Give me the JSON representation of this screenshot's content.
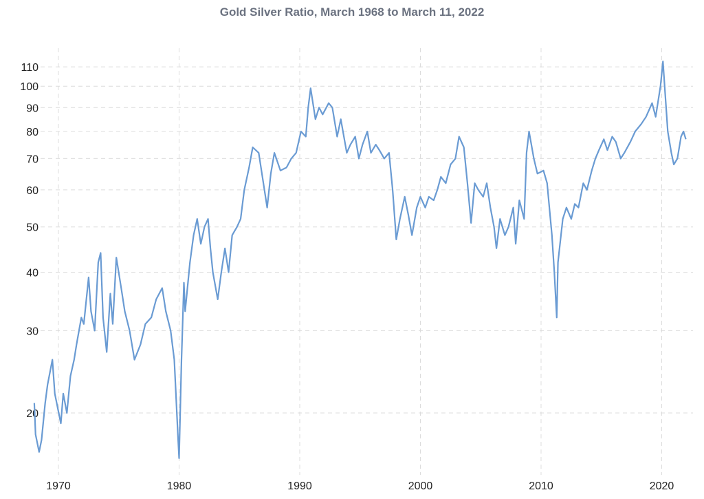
{
  "chart_data": {
    "type": "line",
    "title": "Gold Silver Ratio, March 1968 to March 11, 2022",
    "xlabel": "",
    "ylabel": "",
    "yscale": "log",
    "ylim": [
      16,
      116
    ],
    "xlim": [
      1968,
      2022.2
    ],
    "grid": true,
    "line_color": "#6a9bd3",
    "x_ticks": [
      1970,
      1980,
      1990,
      2000,
      2010,
      2020
    ],
    "x_tick_labels": [
      "1970",
      "1980",
      "1990",
      "2000",
      "2010",
      "2020"
    ],
    "y_ticks": [
      20,
      30,
      40,
      50,
      60,
      70,
      80,
      90,
      100,
      110
    ],
    "y_tick_labels": [
      "20",
      "30",
      "40",
      "50",
      "60",
      "70",
      "80",
      "90",
      "100",
      "110"
    ],
    "series": [
      {
        "name": "Gold Silver Ratio",
        "x": [
          1968.0,
          1968.1,
          1968.4,
          1968.6,
          1968.9,
          1969.1,
          1969.5,
          1969.7,
          1970.2,
          1970.4,
          1970.7,
          1971.0,
          1971.3,
          1971.5,
          1971.9,
          1972.1,
          1972.5,
          1972.7,
          1973.0,
          1973.3,
          1973.5,
          1973.7,
          1974.0,
          1974.3,
          1974.5,
          1974.8,
          1975.2,
          1975.5,
          1975.9,
          1976.3,
          1976.8,
          1977.2,
          1977.7,
          1978.1,
          1978.6,
          1978.9,
          1979.3,
          1979.6,
          1979.9,
          1980.0,
          1980.2,
          1980.4,
          1980.5,
          1980.9,
          1981.2,
          1981.5,
          1981.8,
          1982.1,
          1982.4,
          1982.6,
          1982.8,
          1983.2,
          1983.5,
          1983.8,
          1984.1,
          1984.4,
          1984.8,
          1985.1,
          1985.4,
          1985.8,
          1986.1,
          1986.6,
          1987.3,
          1987.6,
          1987.9,
          1988.4,
          1988.9,
          1989.3,
          1989.7,
          1990.1,
          1990.5,
          1990.7,
          1990.9,
          1991.3,
          1991.6,
          1991.9,
          1992.4,
          1992.7,
          1993.1,
          1993.4,
          1993.9,
          1994.2,
          1994.6,
          1994.9,
          1995.2,
          1995.6,
          1995.9,
          1996.3,
          1996.6,
          1997.0,
          1997.4,
          1997.7,
          1998.0,
          1998.3,
          1998.7,
          1999.0,
          1999.3,
          1999.7,
          2000.0,
          2000.4,
          2000.7,
          2001.1,
          2001.4,
          2001.7,
          2002.1,
          2002.5,
          2002.9,
          2003.2,
          2003.6,
          2003.9,
          2004.2,
          2004.5,
          2004.8,
          2005.2,
          2005.5,
          2005.8,
          2006.1,
          2006.3,
          2006.6,
          2007.0,
          2007.3,
          2007.7,
          2007.9,
          2008.2,
          2008.6,
          2008.8,
          2009.0,
          2009.4,
          2009.7,
          2010.2,
          2010.5,
          2010.9,
          2011.1,
          2011.3,
          2011.4,
          2011.8,
          2012.1,
          2012.5,
          2012.8,
          2013.1,
          2013.5,
          2013.8,
          2014.2,
          2014.5,
          2014.8,
          2015.2,
          2015.5,
          2015.9,
          2016.2,
          2016.6,
          2016.9,
          2017.4,
          2017.8,
          2018.3,
          2018.7,
          2019.2,
          2019.5,
          2019.9,
          2020.1,
          2020.3,
          2020.5,
          2020.8,
          2021.0,
          2021.3,
          2021.6,
          2021.8,
          2022.0
        ],
        "y": [
          21,
          18,
          16.5,
          17.5,
          21,
          23,
          26,
          22,
          19,
          22,
          20,
          24,
          26,
          28,
          32,
          31,
          39,
          33,
          30,
          42,
          44,
          32,
          27,
          36,
          31,
          43,
          37,
          33,
          30,
          26,
          28,
          31,
          32,
          35,
          37,
          33,
          30,
          26,
          18,
          16,
          26,
          38,
          33,
          42,
          48,
          52,
          46,
          50,
          52,
          45,
          40,
          35,
          40,
          45,
          40,
          48,
          50,
          52,
          60,
          67,
          74,
          72,
          55,
          65,
          72,
          66,
          67,
          70,
          72,
          80,
          78,
          90,
          99,
          85,
          90,
          87,
          92,
          90,
          78,
          85,
          72,
          75,
          78,
          70,
          75,
          80,
          72,
          75,
          73,
          70,
          72,
          60,
          47,
          52,
          58,
          53,
          48,
          55,
          58,
          55,
          58,
          57,
          60,
          64,
          62,
          68,
          70,
          78,
          74,
          62,
          51,
          62,
          60,
          58,
          62,
          55,
          50,
          45,
          52,
          48,
          50,
          55,
          46,
          57,
          52,
          72,
          80,
          70,
          65,
          66,
          62,
          48,
          40,
          32,
          42,
          52,
          55,
          52,
          56,
          55,
          62,
          60,
          66,
          70,
          73,
          77,
          73,
          78,
          76,
          70,
          72,
          76,
          80,
          83,
          86,
          92,
          86,
          100,
          113,
          95,
          80,
          72,
          68,
          70,
          78,
          80,
          77
        ]
      }
    ]
  }
}
